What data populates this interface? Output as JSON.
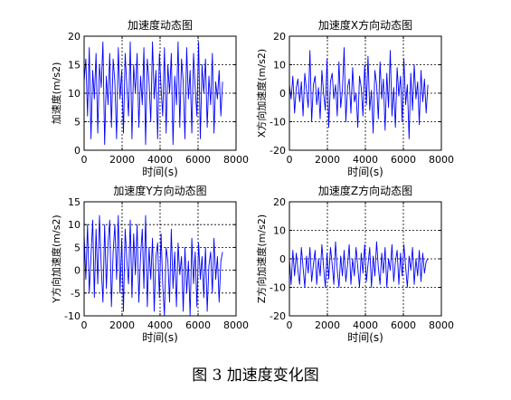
{
  "caption": "图 3  加速度变化图",
  "colors": {
    "line": "#0000ff",
    "axis": "#000000",
    "grid": "#000000",
    "background": "#ffffff"
  },
  "chart_data": [
    {
      "type": "line",
      "title": "加速度动态图",
      "xlabel": "时间(s)",
      "ylabel": "加速度(m/s2)",
      "xlim": [
        0,
        8000
      ],
      "ylim": [
        0,
        20
      ],
      "xticks": [
        0,
        2000,
        4000,
        6000,
        8000
      ],
      "yticks": [
        0,
        5,
        10,
        15,
        20
      ],
      "grid": true,
      "series": [
        {
          "x": [
            0,
            90,
            180,
            270,
            360,
            450,
            540,
            630,
            720,
            810,
            900,
            990,
            1080,
            1170,
            1260,
            1350,
            1440,
            1530,
            1620,
            1710,
            1800,
            1890,
            1980,
            2070,
            2160,
            2250,
            2340,
            2430,
            2520,
            2610,
            2700,
            2790,
            2880,
            2970,
            3060,
            3150,
            3240,
            3330,
            3420,
            3510,
            3600,
            3690,
            3780,
            3870,
            3960,
            4050,
            4140,
            4230,
            4320,
            4410,
            4500,
            4590,
            4680,
            4770,
            4860,
            4950,
            5040,
            5130,
            5220,
            5310,
            5400,
            5490,
            5580,
            5670,
            5760,
            5850,
            5940,
            6030,
            6120,
            6210,
            6300,
            6390,
            6480,
            6570,
            6660,
            6750,
            6840,
            6930,
            7020,
            7110,
            7200,
            7290
          ],
          "y": [
            12,
            16,
            6,
            18,
            2,
            14,
            9,
            17,
            3,
            15,
            11,
            19,
            1,
            13,
            8,
            17,
            4,
            16,
            12,
            2,
            18,
            9,
            14,
            3,
            17,
            11,
            6,
            19,
            2,
            15,
            10,
            17,
            4,
            13,
            8,
            18,
            1,
            16,
            12,
            5,
            19,
            9,
            14,
            2,
            17,
            11,
            6,
            18,
            3,
            15,
            10,
            17,
            1,
            13,
            8,
            19,
            4,
            16,
            12,
            2,
            18,
            9,
            14,
            3,
            17,
            11,
            6,
            19,
            2,
            15,
            10,
            16,
            4,
            13,
            8,
            17,
            3,
            12,
            9,
            14,
            6,
            12
          ]
        }
      ]
    },
    {
      "type": "line",
      "title": "加速度X方向动态图",
      "xlabel": "时间(s)",
      "ylabel": "X方向加速度(m/s2)",
      "xlim": [
        0,
        8000
      ],
      "ylim": [
        -20,
        20
      ],
      "xticks": [
        0,
        2000,
        4000,
        6000,
        8000
      ],
      "yticks": [
        -20,
        -10,
        0,
        10,
        20
      ],
      "grid": true,
      "series": [
        {
          "x": [
            0,
            90,
            180,
            270,
            360,
            450,
            540,
            630,
            720,
            810,
            900,
            990,
            1080,
            1170,
            1260,
            1350,
            1440,
            1530,
            1620,
            1710,
            1800,
            1890,
            1980,
            2070,
            2160,
            2250,
            2340,
            2430,
            2520,
            2610,
            2700,
            2790,
            2880,
            2970,
            3060,
            3150,
            3240,
            3330,
            3420,
            3510,
            3600,
            3690,
            3780,
            3870,
            3960,
            4050,
            4140,
            4230,
            4320,
            4410,
            4500,
            4590,
            4680,
            4770,
            4860,
            4950,
            5040,
            5130,
            5220,
            5310,
            5400,
            5490,
            5580,
            5670,
            5760,
            5850,
            5940,
            6030,
            6120,
            6210,
            6300,
            6390,
            6480,
            6570,
            6660,
            6750,
            6840,
            6930,
            7020,
            7110,
            7200,
            7290
          ],
          "y": [
            3,
            -2,
            6,
            -7,
            2,
            5,
            -3,
            4,
            -8,
            7,
            1,
            -5,
            15,
            -10,
            3,
            6,
            -4,
            2,
            -9,
            8,
            0,
            -6,
            12,
            -12,
            4,
            7,
            -2,
            3,
            -8,
            11,
            -5,
            1,
            16,
            -10,
            2,
            5,
            -7,
            9,
            -3,
            0,
            -12,
            6,
            2,
            -8,
            10,
            -4,
            13,
            -6,
            1,
            -14,
            8,
            3,
            -9,
            11,
            -2,
            5,
            -13,
            7,
            -5,
            15,
            -8,
            2,
            -12,
            9,
            -1,
            6,
            -10,
            12,
            -4,
            3,
            -16,
            7,
            -6,
            10,
            -2,
            4,
            -11,
            8,
            -3,
            5,
            -7,
            3
          ]
        }
      ]
    },
    {
      "type": "line",
      "title": "加速度Y方向动态图",
      "xlabel": "时间(s)",
      "ylabel": "Y方向加速度(m/s2)",
      "xlim": [
        0,
        8000
      ],
      "ylim": [
        -10,
        15
      ],
      "xticks": [
        0,
        2000,
        4000,
        6000,
        8000
      ],
      "yticks": [
        -10,
        -5,
        0,
        5,
        10,
        15
      ],
      "grid": true,
      "series": [
        {
          "x": [
            0,
            90,
            180,
            270,
            360,
            450,
            540,
            630,
            720,
            810,
            900,
            990,
            1080,
            1170,
            1260,
            1350,
            1440,
            1530,
            1620,
            1710,
            1800,
            1890,
            1980,
            2070,
            2160,
            2250,
            2340,
            2430,
            2520,
            2610,
            2700,
            2790,
            2880,
            2970,
            3060,
            3150,
            3240,
            3330,
            3420,
            3510,
            3600,
            3690,
            3780,
            3870,
            3960,
            4050,
            4140,
            4230,
            4320,
            4410,
            4500,
            4590,
            4680,
            4770,
            4860,
            4950,
            5040,
            5130,
            5220,
            5310,
            5400,
            5490,
            5580,
            5670,
            5760,
            5850,
            5940,
            6030,
            6120,
            6210,
            6300,
            6390,
            6480,
            6570,
            6660,
            6750,
            6840,
            6930,
            7020,
            7110,
            7200,
            7290
          ],
          "y": [
            8,
            -2,
            10,
            -5,
            3,
            11,
            -6,
            9,
            -3,
            12,
            1,
            -7,
            10,
            -4,
            6,
            11,
            -8,
            4,
            10,
            -2,
            12,
            -5,
            7,
            -9,
            9,
            2,
            -3,
            11,
            -6,
            8,
            -1,
            10,
            -7,
            3,
            9,
            -4,
            12,
            -8,
            5,
            -2,
            7,
            -9,
            3,
            6,
            -6,
            8,
            -3,
            -10,
            5,
            2,
            -7,
            9,
            -4,
            4,
            -8,
            6,
            -1,
            3,
            -9,
            5,
            -5,
            2,
            -10,
            7,
            -3,
            4,
            -8,
            6,
            -2,
            3,
            -6,
            5,
            -9,
            1,
            4,
            -5,
            7,
            -2,
            3,
            -7,
            2,
            4
          ]
        }
      ]
    },
    {
      "type": "line",
      "title": "加速度Z方向动态图",
      "xlabel": "时间(s)",
      "ylabel": "Z方向加速度(m/s2)",
      "xlim": [
        0,
        8000
      ],
      "ylim": [
        -20,
        20
      ],
      "xticks": [
        0,
        2000,
        4000,
        6000,
        8000
      ],
      "yticks": [
        -20,
        -10,
        0,
        10,
        20
      ],
      "grid": true,
      "series": [
        {
          "x": [
            0,
            90,
            180,
            270,
            360,
            450,
            540,
            630,
            720,
            810,
            900,
            990,
            1080,
            1170,
            1260,
            1350,
            1440,
            1530,
            1620,
            1710,
            1800,
            1890,
            1980,
            2070,
            2160,
            2250,
            2340,
            2430,
            2520,
            2610,
            2700,
            2790,
            2880,
            2970,
            3060,
            3150,
            3240,
            3330,
            3420,
            3510,
            3600,
            3690,
            3780,
            3870,
            3960,
            4050,
            4140,
            4230,
            4320,
            4410,
            4500,
            4590,
            4680,
            4770,
            4860,
            4950,
            5040,
            5130,
            5220,
            5310,
            5400,
            5490,
            5580,
            5670,
            5760,
            5850,
            5940,
            6030,
            6120,
            6210,
            6300,
            6390,
            6480,
            6570,
            6660,
            6750,
            6840,
            6930,
            7020,
            7110,
            7200,
            7290
          ],
          "y": [
            0,
            -9,
            3,
            -6,
            2,
            -4,
            -9,
            4,
            -3,
            -10,
            1,
            -5,
            4,
            -8,
            -2,
            3,
            -9,
            0,
            -6,
            5,
            -3,
            -10,
            2,
            -7,
            4,
            -2,
            -9,
            6,
            -4,
            -10,
            1,
            -6,
            3,
            -8,
            -2,
            5,
            -9,
            0,
            -6,
            4,
            -3,
            -10,
            2,
            -5,
            5,
            -8,
            -2,
            4,
            -10,
            1,
            -6,
            6,
            -3,
            -9,
            2,
            -5,
            4,
            -10,
            0,
            -4,
            5,
            -8,
            -1,
            3,
            -9,
            2,
            -6,
            5,
            -3,
            -10,
            1,
            -4,
            4,
            -9,
            0,
            -6,
            3,
            -8,
            2,
            -5,
            -1,
            0
          ]
        }
      ]
    }
  ]
}
